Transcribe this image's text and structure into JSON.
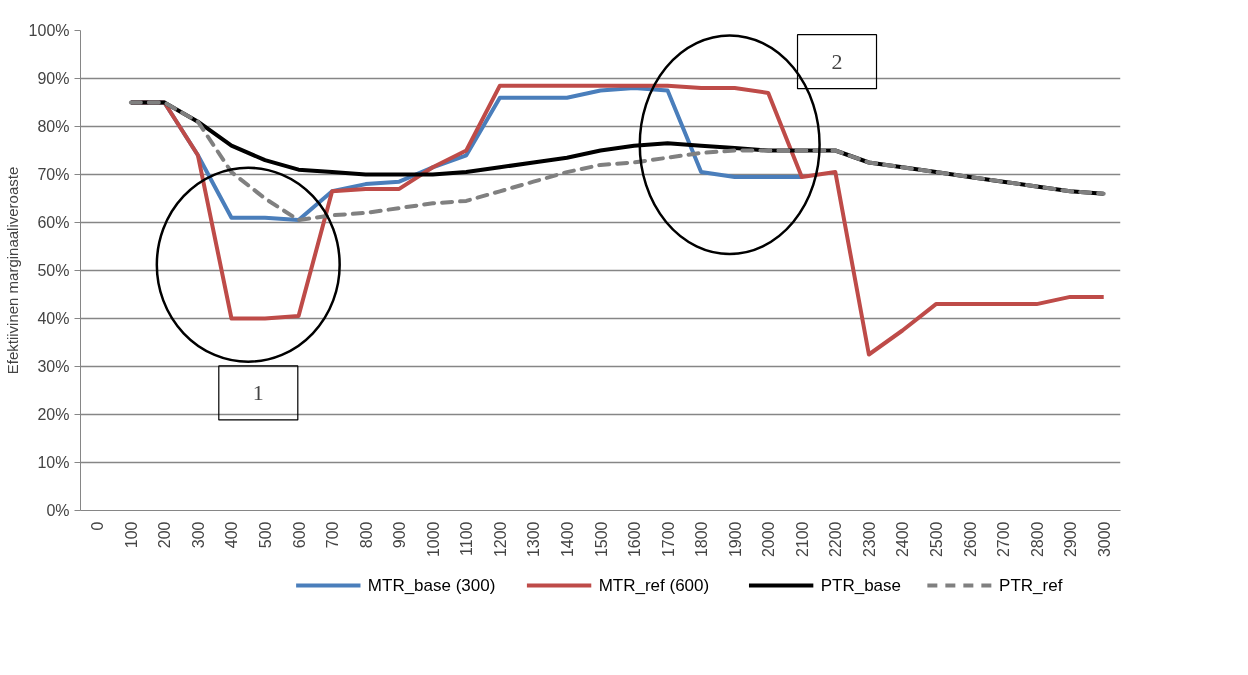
{
  "chart_data": {
    "type": "line",
    "ylabel": "Efektiivinen marginaaliveroaste",
    "categories": [
      "0",
      "100",
      "200",
      "300",
      "400",
      "500",
      "600",
      "700",
      "800",
      "900",
      "1000",
      "1100",
      "1200",
      "1300",
      "1400",
      "1500",
      "1600",
      "1700",
      "1800",
      "1900",
      "2000",
      "2100",
      "2200",
      "2300",
      "2400",
      "2500",
      "2600",
      "2700",
      "2800",
      "2900",
      "3000"
    ],
    "series": [
      {
        "name": "MTR_base (300)",
        "color": "#4a7ebb",
        "line_style": "solid",
        "values": [
          null,
          85,
          85,
          74,
          61,
          61,
          60.5,
          66.5,
          68,
          68.5,
          71.5,
          74,
          86,
          86,
          86,
          87.5,
          88,
          87.5,
          70.5,
          69.5,
          69.5,
          69.5,
          null,
          null,
          null,
          null,
          null,
          null,
          null,
          null,
          null
        ]
      },
      {
        "name": "MTR_ref (600)",
        "color": "#be4b48",
        "line_style": "solid",
        "values": [
          null,
          85,
          85,
          74,
          40,
          40,
          40.5,
          66.5,
          67,
          67,
          71.5,
          75,
          88.5,
          88.5,
          88.5,
          88.5,
          88.5,
          88.5,
          88,
          88,
          87,
          69.5,
          70.5,
          32.5,
          37.5,
          43,
          43,
          43,
          43,
          44.5,
          44.5
        ]
      },
      {
        "name": "PTR_base",
        "color": "#000000",
        "line_style": "solid",
        "values": [
          null,
          85,
          85,
          81,
          76,
          73,
          71,
          70.5,
          70,
          70,
          70,
          70.5,
          71.5,
          72.5,
          73.5,
          75,
          76,
          76.5,
          76,
          75.5,
          75,
          75,
          75,
          72.5,
          71.5,
          70.5,
          69.5,
          68.5,
          67.5,
          66.5,
          66
        ]
      },
      {
        "name": "PTR_ref",
        "color": "#808080",
        "line_style": "dashed",
        "values": [
          null,
          85,
          85,
          81,
          70.5,
          65,
          60.5,
          61.5,
          62,
          63,
          64,
          64.5,
          66.5,
          68.5,
          70.5,
          72,
          72.5,
          73.5,
          74.5,
          75,
          75,
          75,
          75,
          72.5,
          71.5,
          70.5,
          69.5,
          68.5,
          67.5,
          66.5,
          66
        ]
      }
    ],
    "ylim": [
      0,
      100
    ],
    "yticks": [
      {
        "value": 0,
        "label": "0%"
      },
      {
        "value": 10,
        "label": "10%"
      },
      {
        "value": 20,
        "label": "20%"
      },
      {
        "value": 30,
        "label": "30%"
      },
      {
        "value": 40,
        "label": "40%"
      },
      {
        "value": 50,
        "label": "50%"
      },
      {
        "value": 60,
        "label": "60%"
      },
      {
        "value": 70,
        "label": "70%"
      },
      {
        "value": 80,
        "label": "80%"
      },
      {
        "value": 90,
        "label": "90%"
      },
      {
        "value": 100,
        "label": "100%"
      }
    ],
    "grid": "y",
    "legend": "bottom",
    "marker": "none",
    "annotations": [
      "1",
      "2"
    ]
  }
}
